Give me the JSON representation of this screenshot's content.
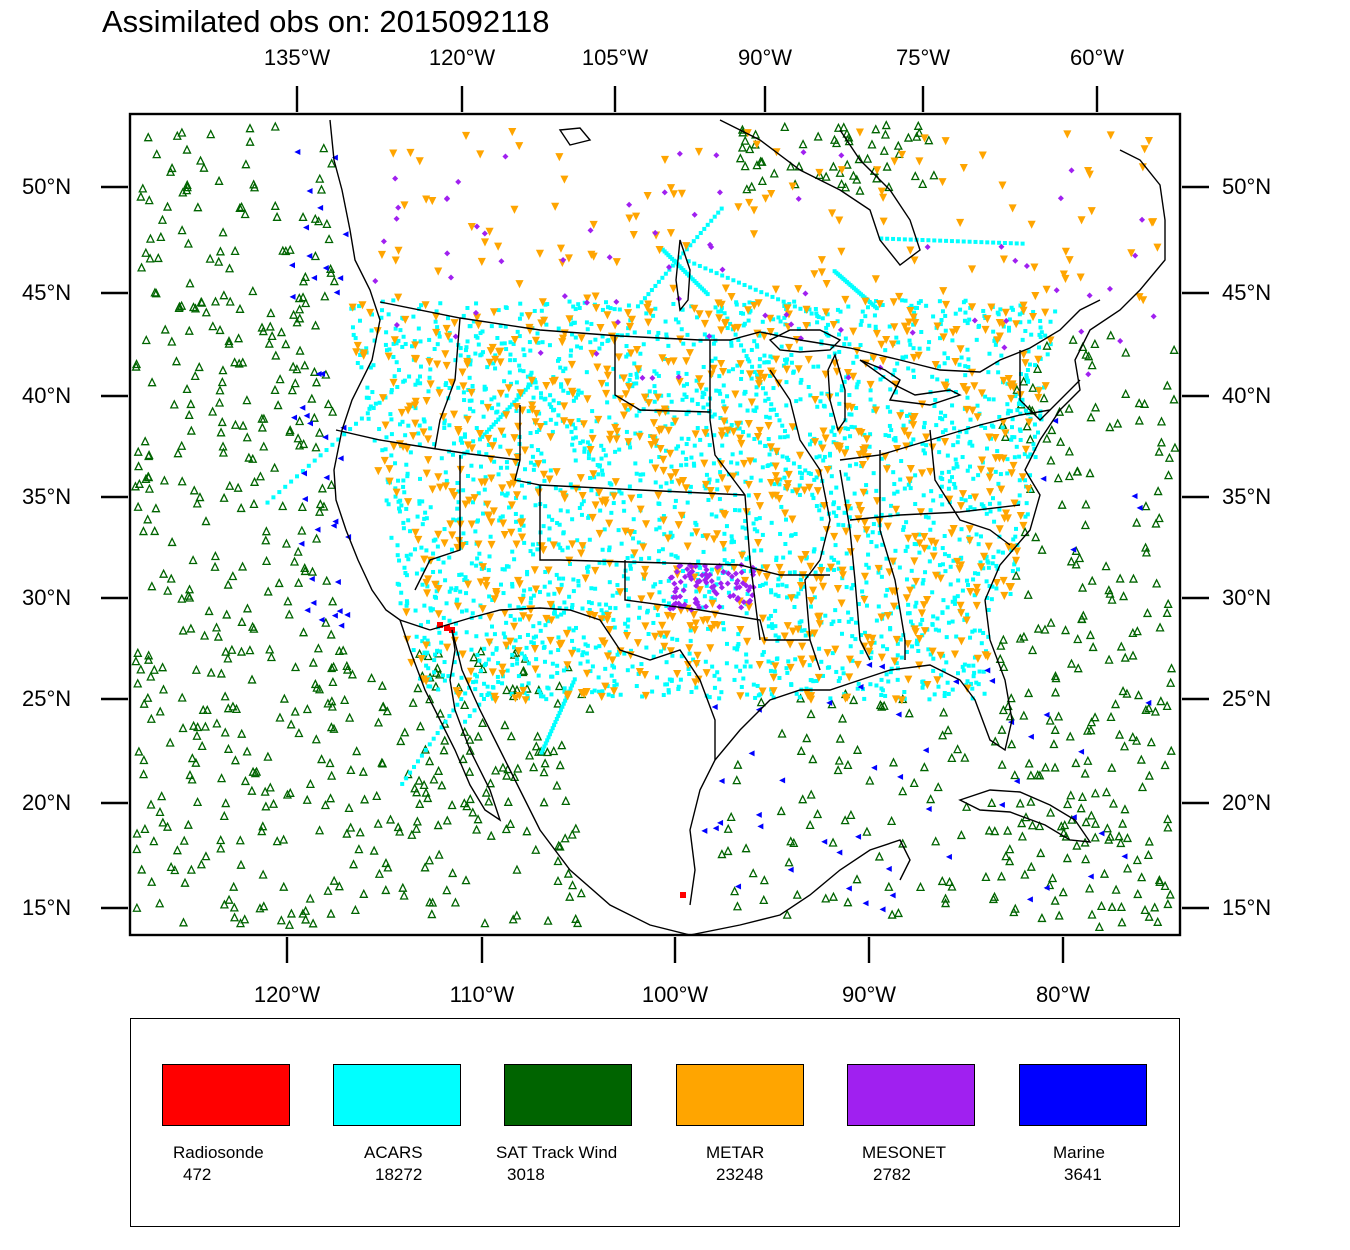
{
  "title": "Assimilated obs on: 2015092118",
  "top_axis": [
    "135°W",
    "120°W",
    "105°W",
    "90°W",
    "75°W",
    "60°W"
  ],
  "bottom_axis": [
    "120°W",
    "110°W",
    "100°W",
    "90°W",
    "80°W"
  ],
  "left_axis": [
    "50°N",
    "45°N",
    "40°N",
    "35°N",
    "30°N",
    "25°N",
    "20°N",
    "15°N"
  ],
  "right_axis": [
    "50°N",
    "45°N",
    "40°N",
    "35°N",
    "30°N",
    "25°N",
    "20°N",
    "15°N"
  ],
  "legend": [
    {
      "name": "Radiosonde",
      "count": "472",
      "color": "#ff0000"
    },
    {
      "name": "ACARS",
      "count": "18272",
      "color": "#00ffff"
    },
    {
      "name": "SAT Track Wind",
      "count": "3018",
      "color": "#006400"
    },
    {
      "name": "METAR",
      "count": "23248",
      "color": "#ffa500"
    },
    {
      "name": "MESONET",
      "count": "2782",
      "color": "#a020f0"
    },
    {
      "name": "Marine",
      "count": "3641",
      "color": "#0000ff"
    }
  ]
}
